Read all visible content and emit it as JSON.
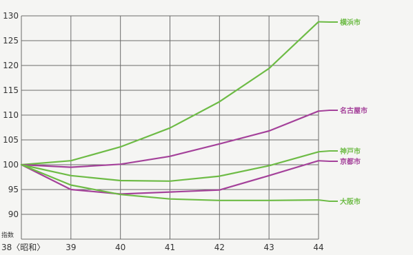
{
  "chart_data": {
    "type": "line",
    "ylabel": "指数",
    "x": [
      38,
      39,
      40,
      41,
      42,
      43,
      44
    ],
    "x_tick_labels": [
      "38〈昭和〉",
      "39",
      "40",
      "41",
      "42",
      "43",
      "44"
    ],
    "ylim": [
      85,
      130
    ],
    "y_ticks": [
      85,
      90,
      95,
      100,
      105,
      110,
      115,
      120,
      125,
      130
    ],
    "y_tick_labels": [
      "",
      "90",
      "95",
      "100",
      "105",
      "110",
      "115",
      "120",
      "125",
      "130"
    ],
    "grid": true,
    "legend": "right end labels",
    "series": [
      {
        "name": "横浜市",
        "color": "#6dbb45",
        "values": [
          100,
          100.8,
          103.6,
          107.4,
          112.7,
          119.4,
          128.8
        ]
      },
      {
        "name": "名古屋市",
        "color": "#a4419a",
        "values": [
          100,
          99.5,
          100.1,
          101.7,
          104.2,
          106.8,
          110.8
        ]
      },
      {
        "name": "神戸市",
        "color": "#6dbb45",
        "values": [
          100,
          97.8,
          96.8,
          96.7,
          97.7,
          99.8,
          102.6
        ]
      },
      {
        "name": "京都市",
        "color": "#a4419a",
        "values": [
          100,
          95.0,
          94.1,
          94.5,
          94.9,
          97.8,
          100.8
        ]
      },
      {
        "name": "大阪市",
        "color": "#6dbb45",
        "values": [
          100,
          95.9,
          94.0,
          93.1,
          92.8,
          92.8,
          92.9
        ]
      }
    ]
  }
}
